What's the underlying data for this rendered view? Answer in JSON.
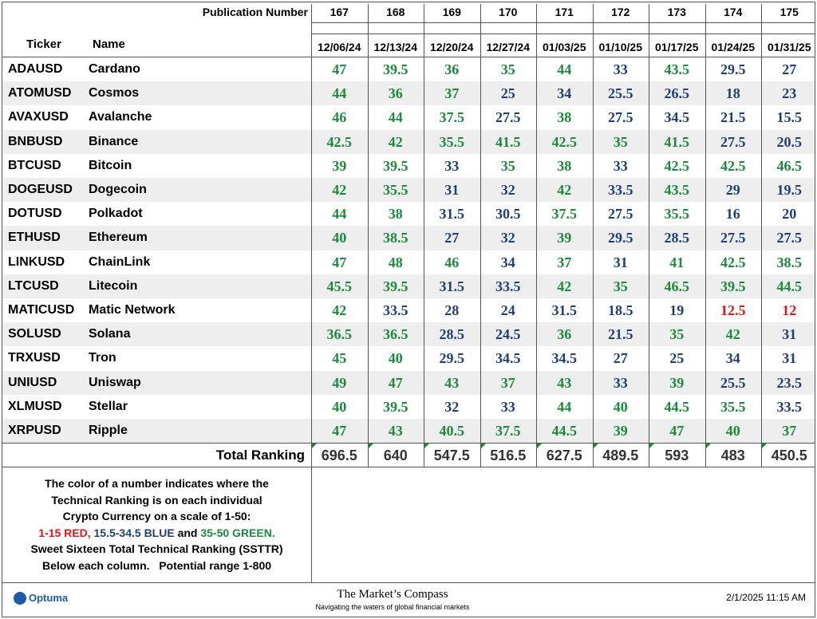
{
  "header": {
    "publication_label": "Publication Number",
    "publications": [
      "167",
      "168",
      "169",
      "170",
      "171",
      "172",
      "173",
      "174",
      "175"
    ],
    "ticker_label": "Ticker",
    "name_label": "Name",
    "dates": [
      "12/06/24",
      "12/13/24",
      "12/20/24",
      "12/27/24",
      "01/03/25",
      "01/10/25",
      "01/17/25",
      "01/24/25",
      "01/31/25"
    ]
  },
  "table": {
    "rows": [
      {
        "ticker": "ADAUSD",
        "name": "Cardano",
        "values": [
          47,
          39.5,
          36,
          35,
          44,
          33,
          43.5,
          29.5,
          27
        ]
      },
      {
        "ticker": "ATOMUSD",
        "name": "Cosmos",
        "values": [
          44,
          36,
          37,
          25,
          34,
          25.5,
          26.5,
          18,
          23
        ]
      },
      {
        "ticker": "AVAXUSD",
        "name": "Avalanche",
        "values": [
          46,
          44,
          37.5,
          27.5,
          38,
          27.5,
          34.5,
          21.5,
          15.5
        ]
      },
      {
        "ticker": "BNBUSD",
        "name": "Binance",
        "values": [
          42.5,
          42,
          35.5,
          41.5,
          42.5,
          35,
          41.5,
          27.5,
          20.5
        ]
      },
      {
        "ticker": "BTCUSD",
        "name": "Bitcoin",
        "values": [
          39,
          39.5,
          33,
          35,
          38,
          33,
          42.5,
          42.5,
          46.5
        ]
      },
      {
        "ticker": "DOGEUSD",
        "name": "Dogecoin",
        "values": [
          42,
          35.5,
          31,
          32,
          42,
          33.5,
          43.5,
          29,
          19.5
        ]
      },
      {
        "ticker": "DOTUSD",
        "name": "Polkadot",
        "values": [
          44,
          38,
          31.5,
          30.5,
          37.5,
          27.5,
          35.5,
          16,
          20
        ]
      },
      {
        "ticker": "ETHUSD",
        "name": "Ethereum",
        "values": [
          40,
          38.5,
          27,
          32,
          39,
          29.5,
          28.5,
          27.5,
          27.5
        ]
      },
      {
        "ticker": "LINKUSD",
        "name": "ChainLink",
        "values": [
          47,
          48,
          46,
          34,
          37,
          31,
          41,
          42.5,
          38.5
        ]
      },
      {
        "ticker": "LTCUSD",
        "name": "Litecoin",
        "values": [
          45.5,
          39.5,
          31.5,
          33.5,
          42,
          35,
          46.5,
          39.5,
          44.5
        ]
      },
      {
        "ticker": "MATICUSD",
        "name": "Matic Network",
        "values": [
          42,
          33.5,
          28,
          24,
          31.5,
          18.5,
          19,
          12.5,
          12
        ]
      },
      {
        "ticker": "SOLUSD",
        "name": "Solana",
        "values": [
          36.5,
          36.5,
          28.5,
          24.5,
          36,
          21.5,
          35,
          42,
          31
        ]
      },
      {
        "ticker": "TRXUSD",
        "name": "Tron",
        "values": [
          45,
          40,
          29.5,
          34.5,
          34.5,
          27,
          25,
          34,
          31
        ]
      },
      {
        "ticker": "UNIUSD",
        "name": "Uniswap",
        "values": [
          49,
          47,
          43,
          37,
          43,
          33,
          39,
          25.5,
          23.5
        ]
      },
      {
        "ticker": "XLMUSD",
        "name": "Stellar",
        "values": [
          40,
          39.5,
          32,
          33,
          44,
          40,
          44.5,
          35.5,
          33.5
        ]
      },
      {
        "ticker": "XRPUSD",
        "name": "Ripple",
        "values": [
          47,
          43,
          40.5,
          37.5,
          44.5,
          39,
          47,
          40,
          37
        ]
      }
    ],
    "color_bands": [
      {
        "min": 1,
        "max": 15,
        "color": "#e8141b"
      },
      {
        "min": 15.5,
        "max": 34.5,
        "color": "#1f3f77"
      },
      {
        "min": 35,
        "max": 50,
        "color": "#1b8a3a"
      }
    ],
    "total_label": "Total Ranking",
    "totals": [
      696.5,
      640,
      547.5,
      516.5,
      627.5,
      489.5,
      593,
      483,
      450.5
    ]
  },
  "note": {
    "lines": [
      [
        {
          "text": "The color of a number indicates where the"
        }
      ],
      [
        {
          "text": "Technical Ranking is on each individual"
        }
      ],
      [
        {
          "text": "Crypto Currency on a scale of 1-50:"
        }
      ],
      [
        {
          "text": "1-15 RED,",
          "color": "#e8141b"
        },
        {
          "text": " 15.5-34.5 BLUE",
          "color": "#1f3f77"
        },
        {
          "text": " and "
        },
        {
          "text": "35-50 GREEN.",
          "color": "#1b8a3a"
        }
      ],
      [
        {
          "text": "Sweet Sixteen Total Technical Ranking (SSTTR)"
        }
      ],
      [
        {
          "text": "Below each column.   Potential range 1-800"
        }
      ]
    ]
  },
  "footer": {
    "logo": "Optuma",
    "brand": "The Market’s Compass",
    "tagline": "Navigating the waters of global financial markets",
    "timestamp": "2/1/2025 11:15 AM"
  }
}
